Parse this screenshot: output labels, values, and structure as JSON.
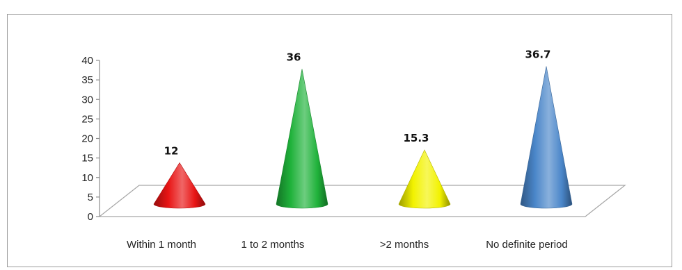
{
  "chart_data": {
    "type": "bar",
    "subtype": "3d-cone",
    "categories": [
      "Within 1 month",
      "1 to 2 months",
      ">2 months",
      "No definite period"
    ],
    "values": [
      12,
      36,
      15.3,
      36.7
    ],
    "value_labels": [
      "12",
      "36",
      "15.3",
      "36.7"
    ],
    "colors": [
      "#e81414",
      "#1fb23a",
      "#f2f200",
      "#4a86c9"
    ],
    "ylim": [
      0,
      40
    ],
    "yticks": [
      0,
      5,
      10,
      15,
      20,
      25,
      30,
      35,
      40
    ],
    "title": "",
    "xlabel": "",
    "ylabel": "",
    "grid": false,
    "legend": "none"
  }
}
